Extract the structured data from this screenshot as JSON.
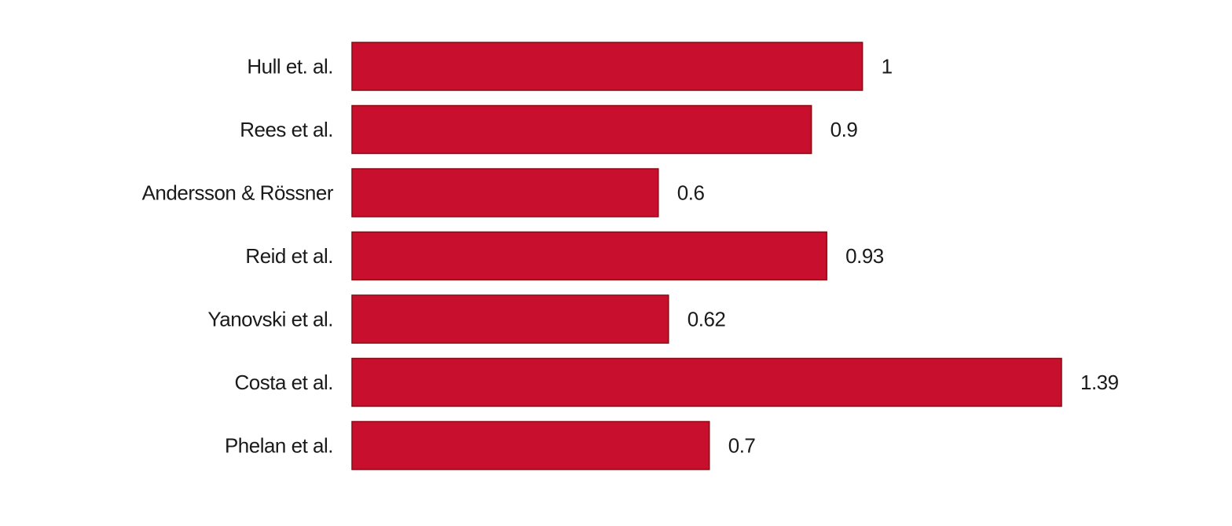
{
  "chart_data": {
    "type": "bar",
    "orientation": "horizontal",
    "categories": [
      "Hull et. al.",
      "Rees et al.",
      "Andersson & Rössner",
      "Reid et al.",
      "Yanovski et al.",
      "Costa et al.",
      "Phelan et al."
    ],
    "values": [
      1,
      0.9,
      0.6,
      0.93,
      0.62,
      1.39,
      0.7
    ],
    "value_labels": [
      "1",
      "0.9",
      "0.6",
      "0.93",
      "0.62",
      "1.39",
      "0.7"
    ],
    "title": "",
    "xlabel": "",
    "ylabel": "",
    "xlim": [
      0,
      1.39
    ],
    "grid": false,
    "legend": "none",
    "bar_color": "#c8102e"
  }
}
